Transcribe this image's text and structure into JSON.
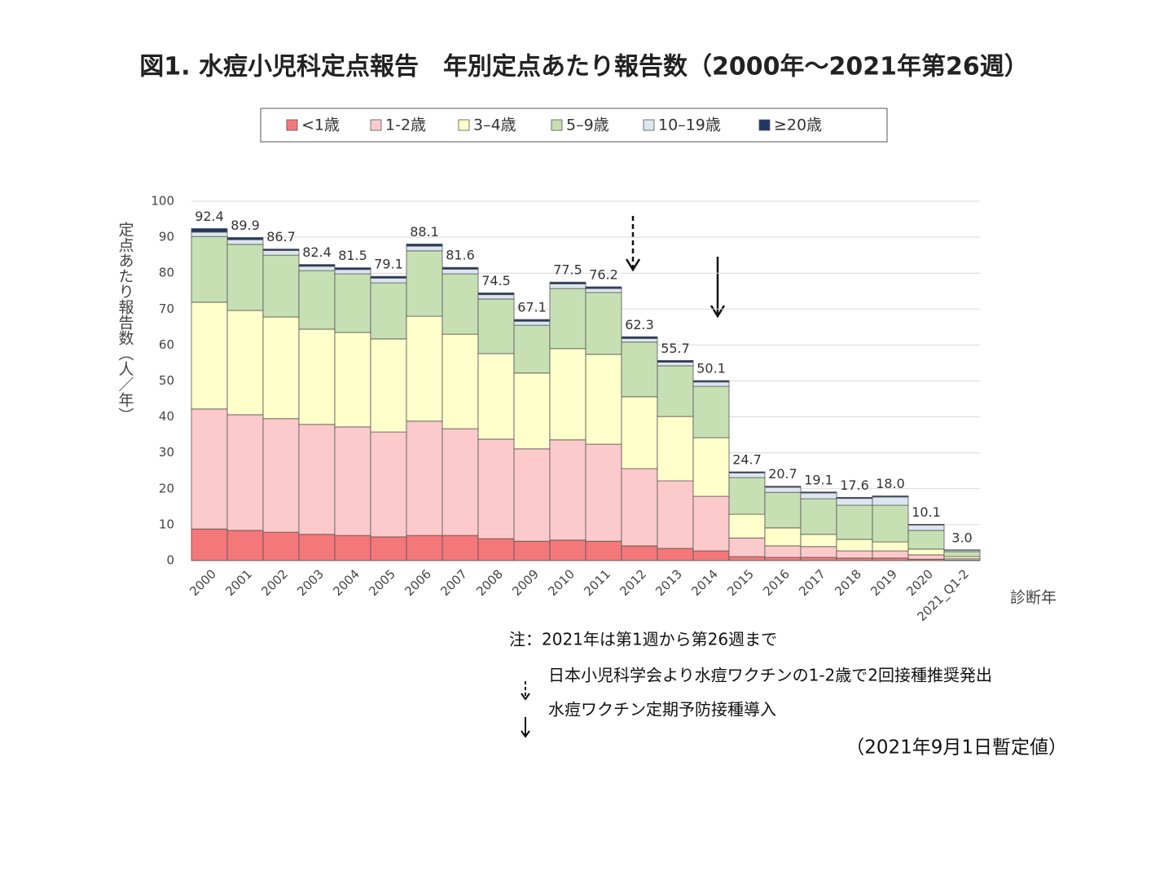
{
  "chart_data": {
    "type": "stacked-bar",
    "title": "図1. 水痘小児科定点報告　年別定点あたり報告数（2000年～2021年第26週）",
    "y_label": "定点あたり報告数（人／年）",
    "x_label": "診断年",
    "categories": [
      "2000",
      "2001",
      "2002",
      "2003",
      "2004",
      "2005",
      "2006",
      "2007",
      "2008",
      "2009",
      "2010",
      "2011",
      "2012",
      "2013",
      "2014",
      "2015",
      "2016",
      "2017",
      "2018",
      "2019",
      "2020",
      "2021_Q1-2"
    ],
    "series": [
      {
        "name": "<1歳",
        "color": "#f4777a",
        "values": [
          8.8,
          8.4,
          7.9,
          7.3,
          7.0,
          6.6,
          7.0,
          7.0,
          6.1,
          5.4,
          5.7,
          5.4,
          4.1,
          3.4,
          2.7,
          1.1,
          0.9,
          0.9,
          0.7,
          0.7,
          0.4,
          0.1
        ]
      },
      {
        "name": "1-2歳",
        "color": "#fccaca",
        "values": [
          33.4,
          32.2,
          31.6,
          30.6,
          30.2,
          29.2,
          31.8,
          29.7,
          27.7,
          25.7,
          27.9,
          27.0,
          21.5,
          18.8,
          15.2,
          5.2,
          3.2,
          3.0,
          2.0,
          2.0,
          1.2,
          0.4
        ]
      },
      {
        "name": "3–4歳",
        "color": "#ffffcc",
        "values": [
          29.7,
          29.0,
          28.3,
          26.5,
          26.3,
          25.9,
          29.2,
          26.3,
          23.8,
          21.1,
          25.4,
          25.0,
          20.0,
          17.9,
          16.3,
          6.6,
          5.0,
          3.4,
          3.2,
          2.5,
          1.6,
          0.6
        ]
      },
      {
        "name": "5–9歳",
        "color": "#c6e0b4",
        "values": [
          18.3,
          18.4,
          17.2,
          16.3,
          16.3,
          15.6,
          18.2,
          16.8,
          15.2,
          13.3,
          16.7,
          17.2,
          15.2,
          14.1,
          14.3,
          10.2,
          9.9,
          9.9,
          9.5,
          10.2,
          5.2,
          1.4
        ]
      },
      {
        "name": "10–19歳",
        "color": "#dce6f1",
        "values": [
          1.2,
          1.3,
          1.3,
          1.2,
          1.2,
          1.3,
          1.3,
          1.3,
          1.2,
          1.1,
          1.3,
          1.1,
          1.0,
          1.0,
          1.2,
          1.3,
          1.4,
          1.6,
          1.9,
          2.3,
          1.5,
          0.4
        ]
      },
      {
        "name": "≥20歳",
        "color": "#1f3864",
        "values": [
          1.0,
          0.6,
          0.4,
          0.5,
          0.5,
          0.5,
          0.6,
          0.5,
          0.5,
          0.5,
          0.5,
          0.5,
          0.5,
          0.5,
          0.4,
          0.3,
          0.3,
          0.3,
          0.3,
          0.3,
          0.2,
          0.1
        ]
      }
    ],
    "totals": [
      92.4,
      89.9,
      86.7,
      82.4,
      81.5,
      79.1,
      88.1,
      81.6,
      74.5,
      67.1,
      77.5,
      76.2,
      62.3,
      55.7,
      50.1,
      24.7,
      20.7,
      19.1,
      17.6,
      18.0,
      10.1,
      3.0
    ],
    "total_labels": [
      "92.4",
      "89.9",
      "86.7",
      "82.4",
      "81.5",
      "79.1",
      "88.1",
      "81.6",
      "74.5",
      "67.1",
      "77.5",
      "76.2",
      "62.3",
      "55.7",
      "50.1",
      "24.7",
      "20.7",
      "19.1",
      "17.6",
      "18.0",
      "10.1",
      "3.0"
    ],
    "ylim": [
      0,
      100
    ],
    "yticks": [
      0,
      10,
      20,
      30,
      40,
      50,
      60,
      70,
      80,
      90,
      100
    ],
    "grid": true,
    "notes": [
      "注：2021年は第1週から第26週まで",
      "日本小児科学会より水痘ワクチンの1-2歳で2回接種推奨発出",
      "水痘ワクチン定期予防接種導入",
      "（2021年9月1日暫定値）"
    ]
  }
}
